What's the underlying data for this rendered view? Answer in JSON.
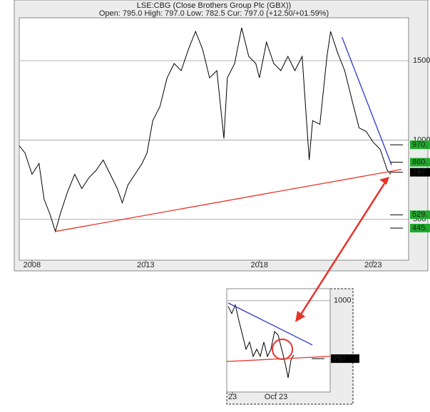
{
  "chart_data": [
    {
      "type": "line",
      "title": "LSE:CBG (Close Brothers Group Plc (GBX))",
      "subtitle": "Open: 795.0 High: 797.0 Low: 782.5 Cur: 797.0 (+12.50/+01.59%)",
      "x": [
        2007.44,
        2007.69,
        2008.0,
        2008.31,
        2008.53,
        2008.78,
        2009.03,
        2009.25,
        2009.56,
        2009.88,
        2010.19,
        2010.5,
        2010.81,
        2011.13,
        2011.44,
        2011.75,
        2011.97,
        2012.22,
        2012.53,
        2012.84,
        2013.06,
        2013.31,
        2013.63,
        2013.94,
        2014.25,
        2014.56,
        2014.88,
        2015.19,
        2015.5,
        2015.81,
        2016.13,
        2016.44,
        2016.59,
        2016.91,
        2017.22,
        2017.53,
        2017.84,
        2018.0,
        2018.31,
        2018.63,
        2018.94,
        2019.25,
        2019.56,
        2019.88,
        2020.19,
        2020.34,
        2020.66,
        2020.97,
        2021.13,
        2021.44,
        2021.75,
        2022.06,
        2022.38,
        2022.69,
        2023.0,
        2023.31,
        2023.63,
        2023.78
      ],
      "series": [
        {
          "color": "#000000",
          "values": [
            964,
            919,
            784,
            852,
            627,
            537,
            424,
            537,
            672,
            784,
            694,
            762,
            807,
            874,
            784,
            694,
            604,
            717,
            784,
            852,
            919,
            1122,
            1212,
            1392,
            1482,
            1437,
            1572,
            1684,
            1572,
            1392,
            1437,
            1009,
            1392,
            1482,
            1707,
            1527,
            1482,
            1392,
            1617,
            1482,
            1437,
            1527,
            1437,
            1527,
            874,
            1122,
            1099,
            1527,
            1684,
            1549,
            1437,
            1257,
            1077,
            1054,
            987,
            942,
            807,
            784
          ]
        }
      ],
      "trend_lines": [
        {
          "color": "#e8332a",
          "x": [
            2009.03,
            2024.25
          ],
          "values": [
            424,
            815
          ]
        },
        {
          "color": "#2c35c8",
          "x": [
            2021.63,
            2023.81
          ],
          "values": [
            1648,
            842
          ]
        }
      ],
      "levels": [
        {
          "value": 970,
          "label": "970."
        },
        {
          "value": 860,
          "label": "860."
        },
        797,
        {
          "value": 529,
          "label": "529."
        },
        {
          "value": 445,
          "label": "445."
        }
      ],
      "level_colors": [
        "#1faa2a",
        "#1faa2a",
        "#000000",
        "#1faa2a",
        "#1faa2a"
      ],
      "xlim": [
        2007.44,
        2024.56
      ],
      "xticks": [
        2008,
        2013,
        2018,
        2023
      ],
      "ylim": [
        243,
        1770
      ],
      "yticks": [
        500,
        1000,
        1500
      ],
      "grid": true
    },
    {
      "type": "line",
      "x": [
        2,
        7,
        12,
        17,
        22,
        27,
        32,
        37,
        42,
        47,
        52,
        57,
        62,
        67,
        72,
        77,
        82,
        86,
        90,
        94
      ],
      "series": [
        {
          "color": "#000000",
          "values": [
            980,
            955,
            985,
            930,
            880,
            830,
            855,
            805,
            830,
            805,
            855,
            805,
            830,
            892,
            880,
            830,
            780,
            730,
            792,
            810
          ]
        }
      ],
      "trend_lines": [
        {
          "color": "#2c35c8",
          "x": [
            2,
            120
          ],
          "values": [
            992,
            845
          ]
        },
        {
          "color": "#e8332a",
          "x": [
            0,
            145
          ],
          "values": [
            787,
            805
          ]
        }
      ],
      "levels": [
        797
      ],
      "level_colors": [
        "#000000"
      ],
      "xlim": [
        0,
        145
      ],
      "xticks": [
        {
          "value": 8,
          "label": "23"
        },
        {
          "value": 69,
          "label": "Oct 23"
        }
      ],
      "ylim": [
        680,
        1042
      ],
      "yticks": [
        1000
      ],
      "grid": true
    }
  ]
}
